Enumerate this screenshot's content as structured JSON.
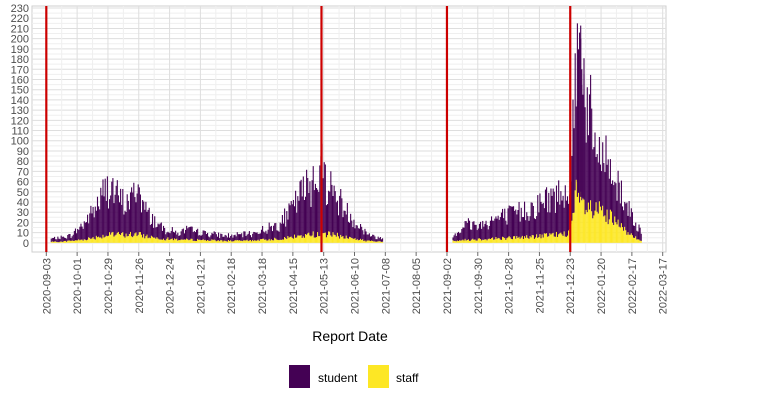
{
  "chart_data": {
    "type": "bar",
    "stacked": true,
    "xlabel": "Report Date",
    "ylabel": "",
    "x_range": [
      "2020-08-21",
      "2022-03-20"
    ],
    "ylim": [
      -9,
      232
    ],
    "y_ticks": [
      0,
      10,
      20,
      30,
      40,
      50,
      60,
      70,
      80,
      90,
      100,
      110,
      120,
      130,
      140,
      150,
      160,
      170,
      180,
      190,
      200,
      210,
      220,
      230
    ],
    "x_ticks": [
      "2020-09-03",
      "2020-10-01",
      "2020-10-29",
      "2020-11-26",
      "2020-12-24",
      "2021-01-21",
      "2021-02-18",
      "2021-03-18",
      "2021-04-15",
      "2021-05-13",
      "2021-06-10",
      "2021-07-08",
      "2021-08-05",
      "2021-09-02",
      "2021-09-30",
      "2021-10-28",
      "2021-11-25",
      "2021-12-23",
      "2022-01-20",
      "2022-02-17",
      "2022-03-17"
    ],
    "vlines": [
      "2020-09-03",
      "2021-05-11",
      "2021-09-02",
      "2021-12-23"
    ],
    "vline_color": "#cc0000",
    "grid": true,
    "legend_position": "bottom",
    "series": [
      {
        "name": "student",
        "color": "#440154",
        "points": [
          [
            "2020-09-07",
            3
          ],
          [
            "2020-09-15",
            4
          ],
          [
            "2020-09-25",
            5
          ],
          [
            "2020-10-05",
            14
          ],
          [
            "2020-10-12",
            22
          ],
          [
            "2020-10-19",
            32
          ],
          [
            "2020-10-26",
            44
          ],
          [
            "2020-10-30",
            50
          ],
          [
            "2020-11-05",
            38
          ],
          [
            "2020-11-12",
            30
          ],
          [
            "2020-11-19",
            35
          ],
          [
            "2020-11-24",
            48
          ],
          [
            "2020-12-01",
            26
          ],
          [
            "2020-12-08",
            18
          ],
          [
            "2020-12-15",
            12
          ],
          [
            "2020-12-22",
            9
          ],
          [
            "2021-01-01",
            6
          ],
          [
            "2021-01-08",
            10
          ],
          [
            "2021-01-15",
            8
          ],
          [
            "2021-01-22",
            7
          ],
          [
            "2021-02-01",
            6
          ],
          [
            "2021-02-10",
            5
          ],
          [
            "2021-02-20",
            5
          ],
          [
            "2021-03-01",
            6
          ],
          [
            "2021-03-10",
            7
          ],
          [
            "2021-03-20",
            10
          ],
          [
            "2021-04-01",
            14
          ],
          [
            "2021-04-10",
            22
          ],
          [
            "2021-04-20",
            38
          ],
          [
            "2021-04-28",
            48
          ],
          [
            "2021-05-05",
            58
          ],
          [
            "2021-05-10",
            65
          ],
          [
            "2021-05-15",
            55
          ],
          [
            "2021-05-22",
            40
          ],
          [
            "2021-05-30",
            30
          ],
          [
            "2021-06-07",
            20
          ],
          [
            "2021-06-15",
            12
          ],
          [
            "2021-06-25",
            5
          ],
          [
            "2021-07-05",
            3
          ],
          [
            "2021-09-06",
            4
          ],
          [
            "2021-09-12",
            10
          ],
          [
            "2021-09-20",
            16
          ],
          [
            "2021-09-28",
            14
          ],
          [
            "2021-10-05",
            15
          ],
          [
            "2021-10-12",
            18
          ],
          [
            "2021-10-20",
            20
          ],
          [
            "2021-10-28",
            22
          ],
          [
            "2021-11-05",
            24
          ],
          [
            "2021-11-12",
            27
          ],
          [
            "2021-11-19",
            29
          ],
          [
            "2021-11-26",
            32
          ],
          [
            "2021-12-03",
            35
          ],
          [
            "2021-12-10",
            38
          ],
          [
            "2021-12-17",
            42
          ],
          [
            "2021-12-22",
            45
          ],
          [
            "2021-12-26",
            100
          ],
          [
            "2021-12-30",
            130
          ],
          [
            "2022-01-02",
            155
          ],
          [
            "2022-01-05",
            115
          ],
          [
            "2022-01-08",
            100
          ],
          [
            "2022-01-12",
            70
          ],
          [
            "2022-01-16",
            55
          ],
          [
            "2022-01-20",
            50
          ],
          [
            "2022-01-24",
            60
          ],
          [
            "2022-01-28",
            45
          ],
          [
            "2022-02-03",
            40
          ],
          [
            "2022-02-09",
            30
          ],
          [
            "2022-02-15",
            22
          ],
          [
            "2022-02-21",
            14
          ],
          [
            "2022-02-25",
            8
          ]
        ]
      },
      {
        "name": "staff",
        "color": "#fde725",
        "points": [
          [
            "2020-09-07",
            1
          ],
          [
            "2020-09-15",
            1
          ],
          [
            "2020-09-25",
            2
          ],
          [
            "2020-10-05",
            3
          ],
          [
            "2020-10-15",
            5
          ],
          [
            "2020-10-25",
            7
          ],
          [
            "2020-11-05",
            8
          ],
          [
            "2020-11-15",
            8
          ],
          [
            "2020-11-25",
            8
          ],
          [
            "2020-12-05",
            6
          ],
          [
            "2020-12-20",
            4
          ],
          [
            "2021-01-05",
            3
          ],
          [
            "2021-01-20",
            3
          ],
          [
            "2021-02-10",
            2
          ],
          [
            "2021-03-01",
            2
          ],
          [
            "2021-03-20",
            3
          ],
          [
            "2021-04-10",
            5
          ],
          [
            "2021-04-25",
            7
          ],
          [
            "2021-05-08",
            9
          ],
          [
            "2021-05-20",
            8
          ],
          [
            "2021-06-05",
            5
          ],
          [
            "2021-06-20",
            2
          ],
          [
            "2021-07-05",
            1
          ],
          [
            "2021-09-06",
            2
          ],
          [
            "2021-09-20",
            3
          ],
          [
            "2021-10-10",
            4
          ],
          [
            "2021-10-30",
            5
          ],
          [
            "2021-11-20",
            6
          ],
          [
            "2021-12-10",
            8
          ],
          [
            "2021-12-22",
            10
          ],
          [
            "2021-12-28",
            45
          ],
          [
            "2022-01-02",
            38
          ],
          [
            "2022-01-08",
            32
          ],
          [
            "2022-01-15",
            30
          ],
          [
            "2022-01-22",
            28
          ],
          [
            "2022-02-01",
            20
          ],
          [
            "2022-02-10",
            12
          ],
          [
            "2022-02-20",
            6
          ],
          [
            "2022-02-25",
            3
          ]
        ]
      }
    ]
  }
}
